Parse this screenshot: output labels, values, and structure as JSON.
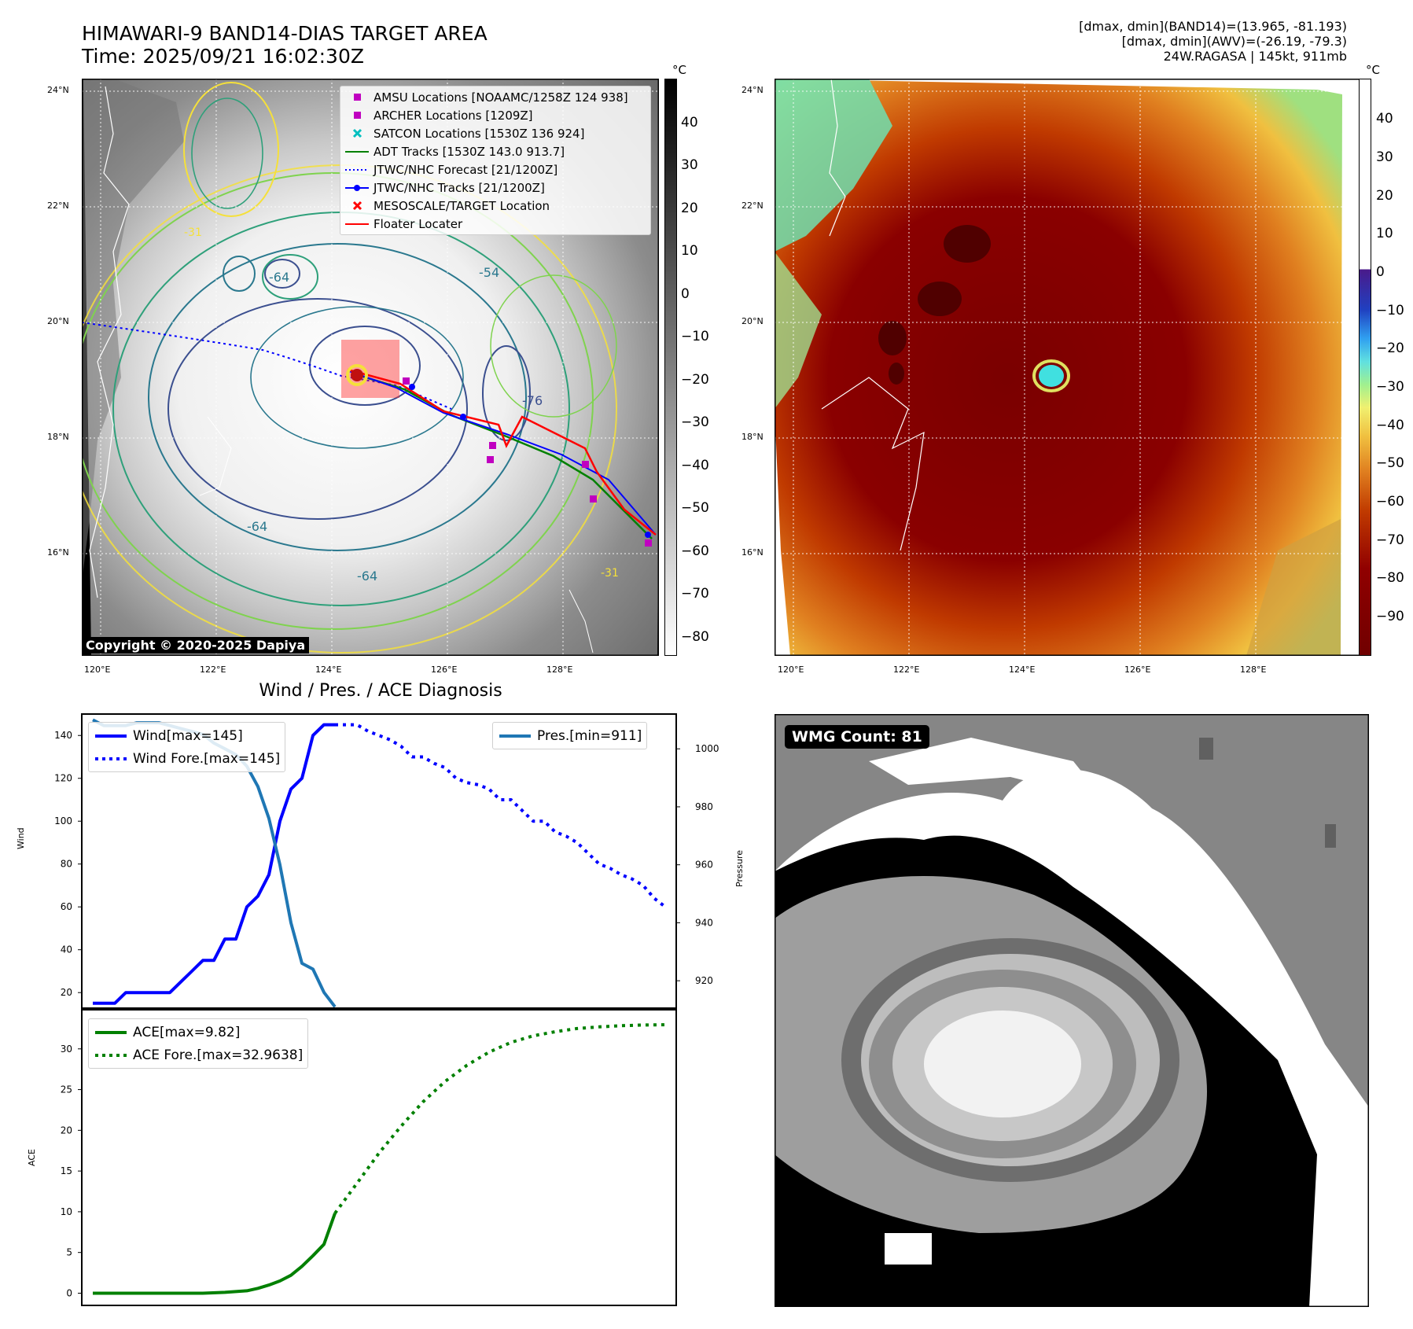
{
  "header": {
    "title": "HIMAWARI-9 BAND14-DIAS TARGET AREA",
    "time": "Time: 2025/09/21 16:02:30Z",
    "meta": [
      "[dmax, dmin](BAND14)=(13.965, -81.193)",
      "[dmax, dmin](AWV)=(-26.19, -79.3)",
      "24W.RAGASA | 145kt, 911mb"
    ]
  },
  "map_panel": {
    "lat_labels": [
      "24°N",
      "22°N",
      "20°N",
      "18°N",
      "16°N"
    ],
    "lon_labels": [
      "120°E",
      "122°E",
      "124°E",
      "126°E",
      "128°E"
    ],
    "copyright": "Copyright © 2020-2025 Dapiya",
    "colorbar_unit": "°C",
    "colorbar_ticks": [
      "40",
      "30",
      "20",
      "10",
      "0",
      "−10",
      "−20",
      "−30",
      "−40",
      "−50",
      "−60",
      "−70",
      "−80"
    ],
    "contour_labels": [
      "-64",
      "-54",
      "-64",
      "-76",
      "-31",
      "-31",
      "-64"
    ],
    "legend": [
      {
        "label": "AMSU Locations [NOAAMC/1258Z 124 938]",
        "marker": "square",
        "color": "#c000c0"
      },
      {
        "label": "ARCHER Locations [1209Z]",
        "marker": "square",
        "color": "#c000c0"
      },
      {
        "label": "SATCON Locations [1530Z 136 924]",
        "marker": "x",
        "color": "#00bfbf"
      },
      {
        "label": "ADT Tracks [1530Z 143.0 913.7]",
        "marker": "line",
        "color": "#008000"
      },
      {
        "label": "JTWC/NHC Forecast [21/1200Z]",
        "marker": "dotted",
        "color": "#0000ff"
      },
      {
        "label": "JTWC/NHC Tracks [21/1200Z]",
        "marker": "line-dot",
        "color": "#0000ff"
      },
      {
        "label": "MESOSCALE/TARGET Location",
        "marker": "x",
        "color": "#ff0000"
      },
      {
        "label": "Floater Locater",
        "marker": "line",
        "color": "#ff0000"
      }
    ]
  },
  "awv_panel": {
    "lat_labels": [
      "24°N",
      "22°N",
      "20°N",
      "18°N",
      "16°N"
    ],
    "lon_labels": [
      "120°E",
      "122°E",
      "124°E",
      "126°E",
      "128°E"
    ],
    "colorbar_unit": "°C",
    "colorbar_ticks": [
      "40",
      "30",
      "20",
      "10",
      "0",
      "−10",
      "−20",
      "−30",
      "−40",
      "−50",
      "−60",
      "−70",
      "−80",
      "−90"
    ]
  },
  "wmg_panel": {
    "label": "WMG Count: 81"
  },
  "chart_data": [
    {
      "type": "line",
      "title": "Wind / Pres. / ACE Diagnosis",
      "ylabel": "Wind",
      "y2label": "Pressure",
      "ylim": [
        12,
        150
      ],
      "y2lim": [
        910,
        1012
      ],
      "yticks": [
        "20",
        "40",
        "60",
        "80",
        "100",
        "120",
        "140"
      ],
      "y2ticks": [
        "920",
        "940",
        "960",
        "980",
        "1000"
      ],
      "legend_left": [
        "Wind[max=145]",
        "Wind Fore.[max=145]"
      ],
      "legend_right": [
        "Pres.[min=911]"
      ],
      "series": [
        {
          "name": "Wind[max=145]",
          "color": "#0000ff",
          "style": "solid",
          "x": [
            0,
            1,
            2,
            3,
            4,
            5,
            6,
            7,
            8,
            9,
            10,
            11,
            12,
            13,
            14,
            15,
            16,
            17,
            18,
            19,
            20,
            21,
            22
          ],
          "values": [
            15,
            15,
            15,
            20,
            20,
            20,
            20,
            20,
            25,
            30,
            35,
            35,
            45,
            45,
            60,
            65,
            75,
            100,
            115,
            120,
            140,
            145,
            145
          ]
        },
        {
          "name": "Wind Fore.[max=145]",
          "color": "#0000ff",
          "style": "dotted",
          "x": [
            22,
            23,
            24,
            25,
            26,
            27,
            28,
            29,
            30,
            31,
            32,
            33,
            34,
            35,
            36,
            37,
            38,
            39,
            40,
            41,
            42,
            43,
            44,
            45,
            46,
            47,
            48,
            49,
            50,
            51,
            52
          ],
          "values": [
            145,
            145,
            145,
            142,
            140,
            138,
            135,
            130,
            130,
            127,
            125,
            120,
            118,
            117,
            115,
            110,
            110,
            105,
            100,
            100,
            95,
            93,
            90,
            85,
            80,
            78,
            75,
            73,
            70,
            64,
            60
          ]
        },
        {
          "name": "Pres.[min=911]",
          "color": "#1f77b4",
          "style": "solid",
          "axis": "right",
          "x": [
            0,
            1,
            2,
            3,
            4,
            5,
            6,
            7,
            8,
            9,
            10,
            11,
            12,
            13,
            14,
            15,
            16,
            17,
            18,
            19,
            20,
            21,
            22
          ],
          "values": [
            1010,
            1008,
            1008,
            1008,
            1009,
            1009,
            1009,
            1008,
            1007,
            1006,
            1005,
            1002,
            1000,
            998,
            994,
            987,
            976,
            960,
            940,
            926,
            924,
            916,
            911
          ]
        }
      ]
    },
    {
      "type": "line",
      "ylabel": "ACE",
      "ylim": [
        -1.5,
        35
      ],
      "yticks": [
        "0",
        "5",
        "10",
        "15",
        "20",
        "25",
        "30"
      ],
      "legend": [
        "ACE[max=9.82]",
        "ACE Fore.[max=32.9638]"
      ],
      "series": [
        {
          "name": "ACE[max=9.82]",
          "color": "#008000",
          "style": "solid",
          "x": [
            0,
            2,
            4,
            6,
            8,
            10,
            12,
            14,
            15,
            16,
            17,
            18,
            19,
            20,
            21,
            22
          ],
          "values": [
            0,
            0,
            0,
            0,
            0,
            0,
            0.1,
            0.3,
            0.6,
            1.0,
            1.5,
            2.2,
            3.3,
            4.6,
            6.0,
            9.82
          ]
        },
        {
          "name": "ACE Fore.[max=32.9638]",
          "color": "#008000",
          "style": "dotted",
          "x": [
            22,
            24,
            26,
            28,
            30,
            32,
            34,
            36,
            38,
            40,
            42,
            44,
            46,
            48,
            50,
            52
          ],
          "values": [
            9.82,
            13.5,
            17.2,
            20.5,
            23.5,
            26,
            28,
            29.6,
            30.8,
            31.6,
            32.1,
            32.5,
            32.7,
            32.85,
            32.93,
            32.96
          ]
        }
      ]
    }
  ]
}
